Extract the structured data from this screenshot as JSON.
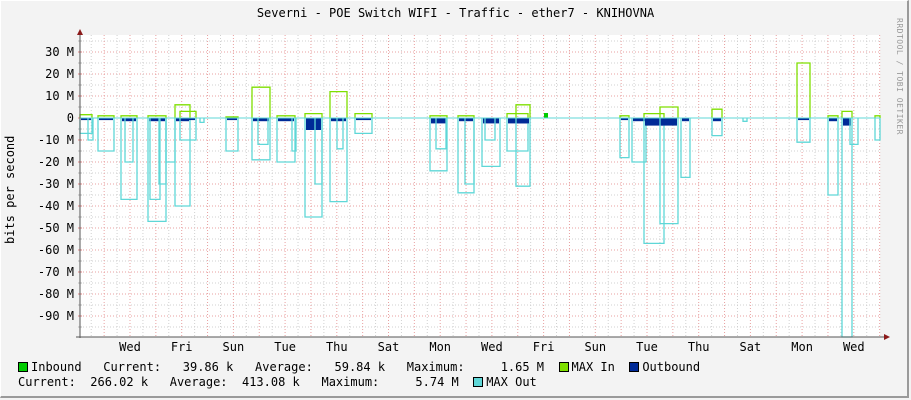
{
  "title": "Severni - POE Switch WIFI - Traffic - ether7 - KNIHOVNA",
  "watermark": "RRDTOOL / TOBI OETIKER",
  "legend": {
    "inbound": {
      "label": "Inbound",
      "color": "#00cc00",
      "current_label": "Current:",
      "current": "39.86 k",
      "average_label": "Average:",
      "average": "59.84 k",
      "maximum_label": "Maximum:",
      "maximum": "1.65 M"
    },
    "max_in": {
      "label": "MAX In",
      "color": "#7fdf00"
    },
    "outbound": {
      "label": "Outbound",
      "color": "#002a97",
      "current_label": "Current:",
      "current": "266.02 k",
      "average_label": "Average:",
      "average": "413.08 k",
      "maximum_label": "Maximum:",
      "maximum": "5.74 M"
    },
    "max_out": {
      "label": "MAX Out",
      "color": "#5fd7d7"
    }
  },
  "chart_data": {
    "type": "line",
    "title": "Severni - POE Switch WIFI - Traffic - ether7 - KNIHOVNA",
    "xlabel": "",
    "ylabel": "bits per second",
    "ylim": [
      -100000000,
      35000000
    ],
    "y_ticks": [
      "30 M",
      "20 M",
      "10 M",
      "0",
      "-10 M",
      "-20 M",
      "-30 M",
      "-40 M",
      "-50 M",
      "-60 M",
      "-70 M",
      "-80 M",
      "-90 M"
    ],
    "x_ticks": [
      "Wed",
      "Fri",
      "Sun",
      "Tue",
      "Thu",
      "Sat",
      "Mon",
      "Wed",
      "Fri",
      "Sun",
      "Tue",
      "Thu",
      "Sat",
      "Mon",
      "Wed"
    ],
    "grid": true,
    "legend_position": "bottom",
    "series": [
      {
        "name": "Inbound",
        "color": "#00cc00",
        "note": "average inbound, near 0 (max 1.65 M)"
      },
      {
        "name": "MAX In",
        "color": "#7fdf00",
        "peaks_M": [
          {
            "x": "Wed",
            "y": 6
          },
          {
            "x": "Fri",
            "y": 3
          },
          {
            "x": "Tue",
            "y": 14
          },
          {
            "x": "Thu",
            "y": 12
          },
          {
            "x": "Fri",
            "y": 6
          },
          {
            "x": "Thu",
            "y": 5
          },
          {
            "x": "Mon",
            "y": 25
          },
          {
            "x": "Wed",
            "y": 3
          }
        ]
      },
      {
        "name": "Outbound",
        "color": "#002a97",
        "note": "average outbound, plotted negative, max 5.74 M",
        "peaks_M": [
          {
            "x": "Tue",
            "y": -6
          },
          {
            "x": "Wed",
            "y": -3
          },
          {
            "x": "Wed",
            "y": -4
          }
        ]
      },
      {
        "name": "MAX Out",
        "color": "#5fd7d7",
        "note": "plotted negative",
        "troughs_M": [
          {
            "x": "Wed",
            "y": -37
          },
          {
            "x": "Fri",
            "y": -47
          },
          {
            "x": "Fri",
            "y": -40
          },
          {
            "x": "Tue",
            "y": -45
          },
          {
            "x": "Thu",
            "y": -38
          },
          {
            "x": "Mon",
            "y": -34
          },
          {
            "x": "Wed",
            "y": -31
          },
          {
            "x": "Tue",
            "y": -57
          },
          {
            "x": "Thu",
            "y": -48
          },
          {
            "x": "Mon",
            "y": -35
          },
          {
            "x": "Wed",
            "y": -100
          }
        ]
      }
    ]
  }
}
